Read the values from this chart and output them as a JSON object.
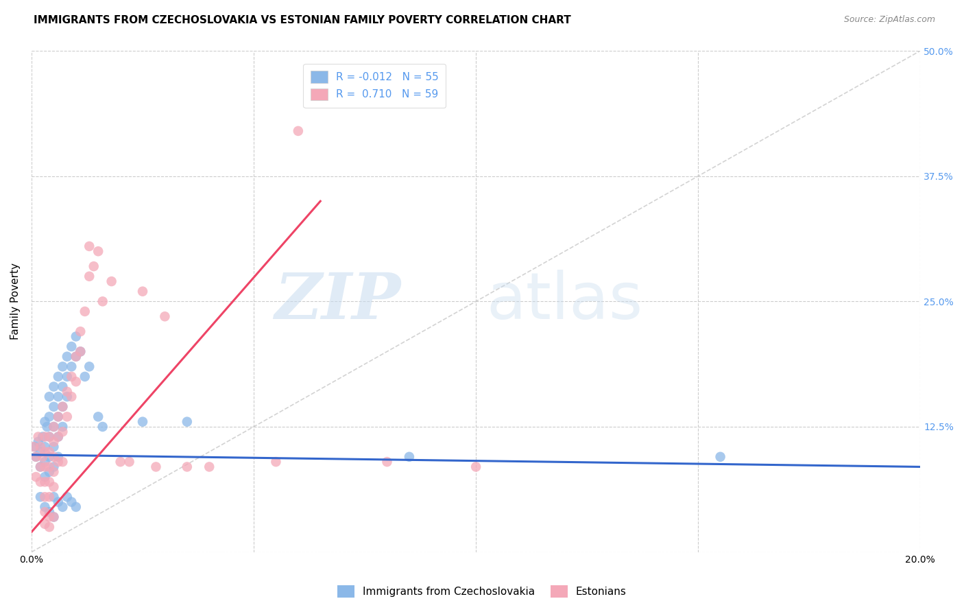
{
  "title": "IMMIGRANTS FROM CZECHOSLOVAKIA VS ESTONIAN FAMILY POVERTY CORRELATION CHART",
  "source": "Source: ZipAtlas.com",
  "ylabel": "Family Poverty",
  "xlim": [
    0.0,
    0.2
  ],
  "ylim": [
    0.0,
    0.5
  ],
  "xticks": [
    0.0,
    0.05,
    0.1,
    0.15,
    0.2
  ],
  "yticks": [
    0.0,
    0.125,
    0.25,
    0.375,
    0.5
  ],
  "xticklabels": [
    "0.0%",
    "",
    "",
    "",
    "20.0%"
  ],
  "yticklabels": [
    "",
    "12.5%",
    "25.0%",
    "37.5%",
    "50.0%"
  ],
  "color_blue": "#8BB8E8",
  "color_pink": "#F4A8B8",
  "color_blue_text": "#5599EE",
  "line_blue": "#3366CC",
  "line_pink": "#EE4466",
  "line_diag": "#C8C8C8",
  "blue_line_y_intercept": 0.097,
  "blue_line_slope": -0.06,
  "pink_line_x0": 0.0,
  "pink_line_y0": 0.02,
  "pink_line_x1": 0.065,
  "pink_line_y1": 0.35,
  "scatter_blue": [
    [
      0.0008,
      0.105
    ],
    [
      0.001,
      0.095
    ],
    [
      0.0015,
      0.11
    ],
    [
      0.002,
      0.1
    ],
    [
      0.002,
      0.085
    ],
    [
      0.0025,
      0.115
    ],
    [
      0.003,
      0.13
    ],
    [
      0.003,
      0.105
    ],
    [
      0.003,
      0.09
    ],
    [
      0.003,
      0.075
    ],
    [
      0.0035,
      0.125
    ],
    [
      0.004,
      0.155
    ],
    [
      0.004,
      0.135
    ],
    [
      0.004,
      0.115
    ],
    [
      0.004,
      0.095
    ],
    [
      0.004,
      0.08
    ],
    [
      0.005,
      0.165
    ],
    [
      0.005,
      0.145
    ],
    [
      0.005,
      0.125
    ],
    [
      0.005,
      0.105
    ],
    [
      0.005,
      0.085
    ],
    [
      0.006,
      0.175
    ],
    [
      0.006,
      0.155
    ],
    [
      0.006,
      0.135
    ],
    [
      0.006,
      0.115
    ],
    [
      0.006,
      0.095
    ],
    [
      0.007,
      0.185
    ],
    [
      0.007,
      0.165
    ],
    [
      0.007,
      0.145
    ],
    [
      0.007,
      0.125
    ],
    [
      0.008,
      0.195
    ],
    [
      0.008,
      0.175
    ],
    [
      0.008,
      0.155
    ],
    [
      0.009,
      0.205
    ],
    [
      0.009,
      0.185
    ],
    [
      0.01,
      0.215
    ],
    [
      0.01,
      0.195
    ],
    [
      0.011,
      0.2
    ],
    [
      0.012,
      0.175
    ],
    [
      0.013,
      0.185
    ],
    [
      0.015,
      0.135
    ],
    [
      0.016,
      0.125
    ],
    [
      0.002,
      0.055
    ],
    [
      0.003,
      0.045
    ],
    [
      0.004,
      0.04
    ],
    [
      0.005,
      0.035
    ],
    [
      0.005,
      0.055
    ],
    [
      0.006,
      0.05
    ],
    [
      0.007,
      0.045
    ],
    [
      0.008,
      0.055
    ],
    [
      0.009,
      0.05
    ],
    [
      0.01,
      0.045
    ],
    [
      0.025,
      0.13
    ],
    [
      0.035,
      0.13
    ],
    [
      0.085,
      0.095
    ],
    [
      0.155,
      0.095
    ]
  ],
  "scatter_pink": [
    [
      0.0005,
      0.105
    ],
    [
      0.001,
      0.095
    ],
    [
      0.001,
      0.075
    ],
    [
      0.0015,
      0.115
    ],
    [
      0.002,
      0.105
    ],
    [
      0.002,
      0.085
    ],
    [
      0.002,
      0.07
    ],
    [
      0.0025,
      0.095
    ],
    [
      0.003,
      0.115
    ],
    [
      0.003,
      0.1
    ],
    [
      0.003,
      0.085
    ],
    [
      0.003,
      0.07
    ],
    [
      0.003,
      0.055
    ],
    [
      0.003,
      0.04
    ],
    [
      0.003,
      0.028
    ],
    [
      0.004,
      0.115
    ],
    [
      0.004,
      0.1
    ],
    [
      0.004,
      0.085
    ],
    [
      0.004,
      0.07
    ],
    [
      0.004,
      0.055
    ],
    [
      0.004,
      0.035
    ],
    [
      0.004,
      0.025
    ],
    [
      0.005,
      0.125
    ],
    [
      0.005,
      0.11
    ],
    [
      0.005,
      0.095
    ],
    [
      0.005,
      0.08
    ],
    [
      0.005,
      0.065
    ],
    [
      0.005,
      0.035
    ],
    [
      0.006,
      0.135
    ],
    [
      0.006,
      0.115
    ],
    [
      0.006,
      0.09
    ],
    [
      0.007,
      0.145
    ],
    [
      0.007,
      0.12
    ],
    [
      0.007,
      0.09
    ],
    [
      0.008,
      0.16
    ],
    [
      0.008,
      0.135
    ],
    [
      0.009,
      0.175
    ],
    [
      0.009,
      0.155
    ],
    [
      0.01,
      0.195
    ],
    [
      0.01,
      0.17
    ],
    [
      0.011,
      0.22
    ],
    [
      0.011,
      0.2
    ],
    [
      0.012,
      0.24
    ],
    [
      0.013,
      0.305
    ],
    [
      0.013,
      0.275
    ],
    [
      0.014,
      0.285
    ],
    [
      0.015,
      0.3
    ],
    [
      0.016,
      0.25
    ],
    [
      0.018,
      0.27
    ],
    [
      0.02,
      0.09
    ],
    [
      0.022,
      0.09
    ],
    [
      0.025,
      0.26
    ],
    [
      0.028,
      0.085
    ],
    [
      0.03,
      0.235
    ],
    [
      0.035,
      0.085
    ],
    [
      0.04,
      0.085
    ],
    [
      0.055,
      0.09
    ],
    [
      0.06,
      0.42
    ],
    [
      0.08,
      0.09
    ],
    [
      0.1,
      0.085
    ]
  ]
}
